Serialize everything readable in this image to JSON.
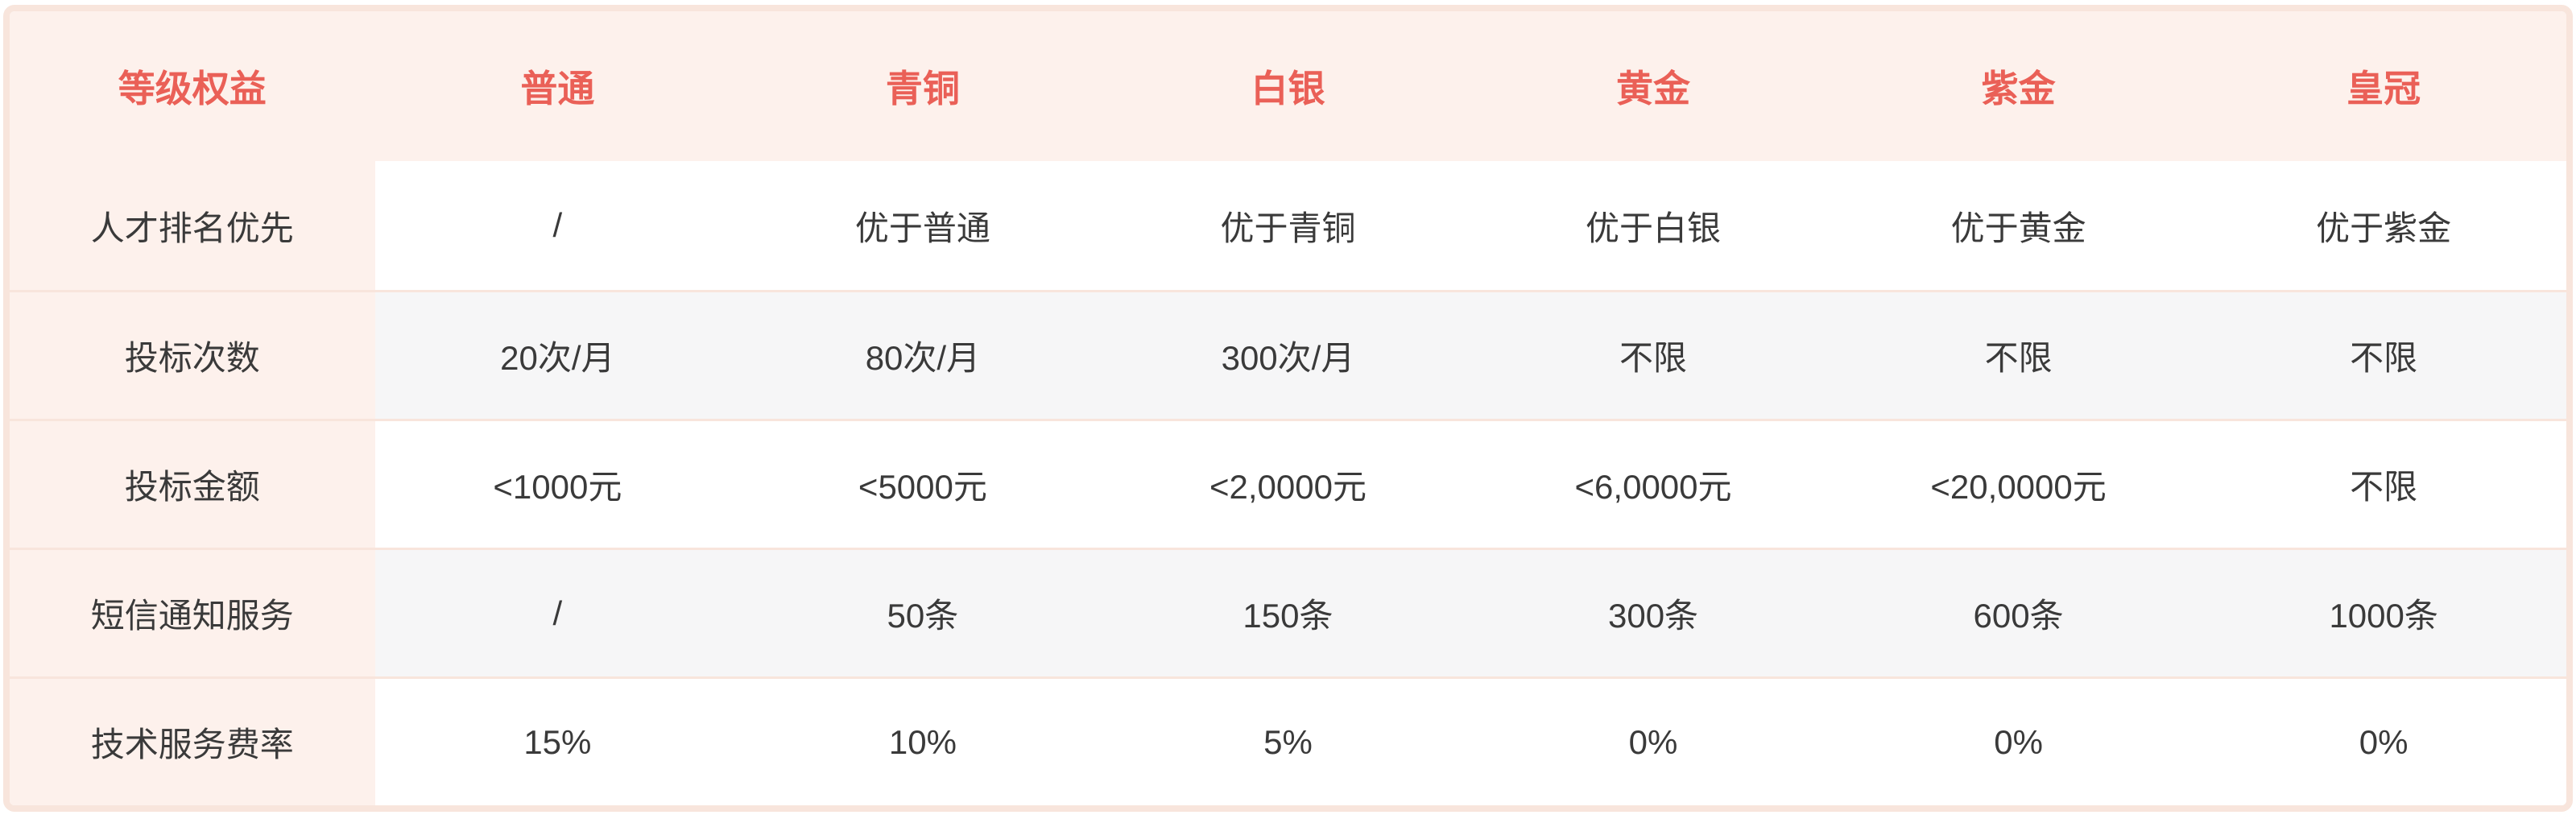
{
  "colors": {
    "accent_red": "#ea6057",
    "border_pink": "#f8e5dc",
    "header_background": "#fdf1ec",
    "stripe_gray": "#f6f6f7",
    "body_text": "#3a3a3a"
  },
  "table": {
    "columns": [
      "等级权益",
      "普通",
      "青铜",
      "白银",
      "黄金",
      "紫金",
      "皇冠"
    ],
    "rows": [
      {
        "label": "人才排名优先",
        "values": [
          "/",
          "优于普通",
          "优于青铜",
          "优于白银",
          "优于黄金",
          "优于紫金"
        ]
      },
      {
        "label": "投标次数",
        "values": [
          "20次/月",
          "80次/月",
          "300次/月",
          "不限",
          "不限",
          "不限"
        ]
      },
      {
        "label": "投标金额",
        "values": [
          "<1000元",
          "<5000元",
          "<2,0000元",
          "<6,0000元",
          "<20,0000元",
          "不限"
        ]
      },
      {
        "label": "短信通知服务",
        "values": [
          "/",
          "50条",
          "150条",
          "300条",
          "600条",
          "1000条"
        ]
      },
      {
        "label": "技术服务费率",
        "values": [
          "15%",
          "10%",
          "5%",
          "0%",
          "0%",
          "0%"
        ]
      }
    ]
  }
}
